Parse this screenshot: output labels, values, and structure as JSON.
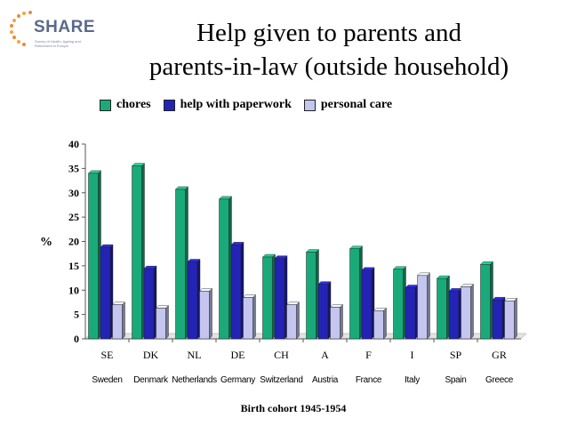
{
  "logo": {
    "text": "SHARE",
    "subtext": "Survey of Health, Ageing and Retirement in Europe"
  },
  "chart_data": {
    "type": "bar",
    "title_lines": [
      "Help given to parents and",
      "parents-in-law (outside household)"
    ],
    "categories": [
      "SE",
      "DK",
      "NL",
      "DE",
      "CH",
      "A",
      "F",
      "I",
      "SP",
      "GR"
    ],
    "country_names": [
      "Sweden",
      "Denmark",
      "Netherlands",
      "Germany",
      "Switzerland",
      "Austria",
      "France",
      "Italy",
      "Spain",
      "Greece"
    ],
    "series": [
      {
        "name": "chores",
        "color": "#1aaa7a",
        "values": [
          34,
          35.5,
          30.7,
          28.7,
          16.8,
          17.8,
          18.5,
          14.3,
          12.4,
          15.3
        ]
      },
      {
        "name": "help with paperwork",
        "color": "#2323b5",
        "values": [
          18.8,
          14.4,
          15.8,
          19.3,
          16.5,
          11.2,
          14.1,
          10.5,
          9.8,
          8
        ]
      },
      {
        "name": "personal care",
        "color": "#c4c6f0",
        "values": [
          7,
          6.3,
          9.8,
          8.5,
          7,
          6.5,
          5.8,
          13,
          10.7,
          7.8
        ]
      }
    ],
    "ylabel": "%",
    "xlabel": "Birth cohort 1945-1954",
    "ylim": [
      0,
      40
    ],
    "yticks": [
      0,
      5,
      10,
      15,
      20,
      25,
      30,
      35,
      40
    ]
  }
}
